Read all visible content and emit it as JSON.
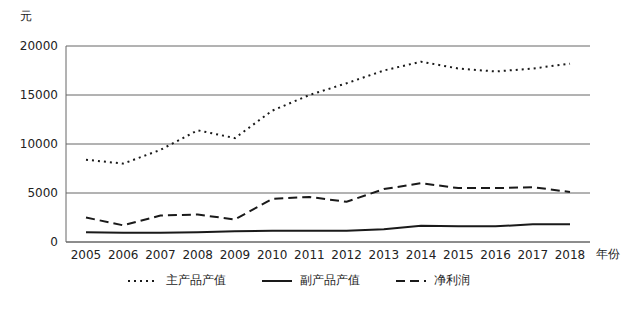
{
  "chart_data": {
    "type": "line",
    "y_label": "元",
    "x_label": "年份",
    "categories": [
      "2005",
      "2006",
      "2007",
      "2008",
      "2009",
      "2010",
      "2011",
      "2012",
      "2013",
      "2014",
      "2015",
      "2016",
      "2017",
      "2018"
    ],
    "series": [
      {
        "name": "主产品产值",
        "color": "#1a1a1a",
        "line_style": "dotted",
        "values": [
          8400,
          8000,
          9400,
          11400,
          10600,
          13400,
          15000,
          16200,
          17500,
          18400,
          17700,
          17400,
          17700,
          18200
        ]
      },
      {
        "name": "副产品产值",
        "color": "#1a1a1a",
        "line_style": "solid",
        "values": [
          1000,
          950,
          950,
          1000,
          1100,
          1150,
          1150,
          1150,
          1300,
          1650,
          1600,
          1600,
          1800,
          1800
        ]
      },
      {
        "name": "净利润",
        "color": "#1a1a1a",
        "line_style": "dashed",
        "values": [
          2500,
          1700,
          2700,
          2800,
          2300,
          4400,
          4600,
          4100,
          5400,
          6000,
          5500,
          5500,
          5600,
          5100
        ]
      }
    ],
    "ylim": [
      0,
      20000
    ],
    "yticks": [
      0,
      5000,
      10000,
      15000,
      20000
    ],
    "grid": true,
    "legend": "bottom"
  }
}
